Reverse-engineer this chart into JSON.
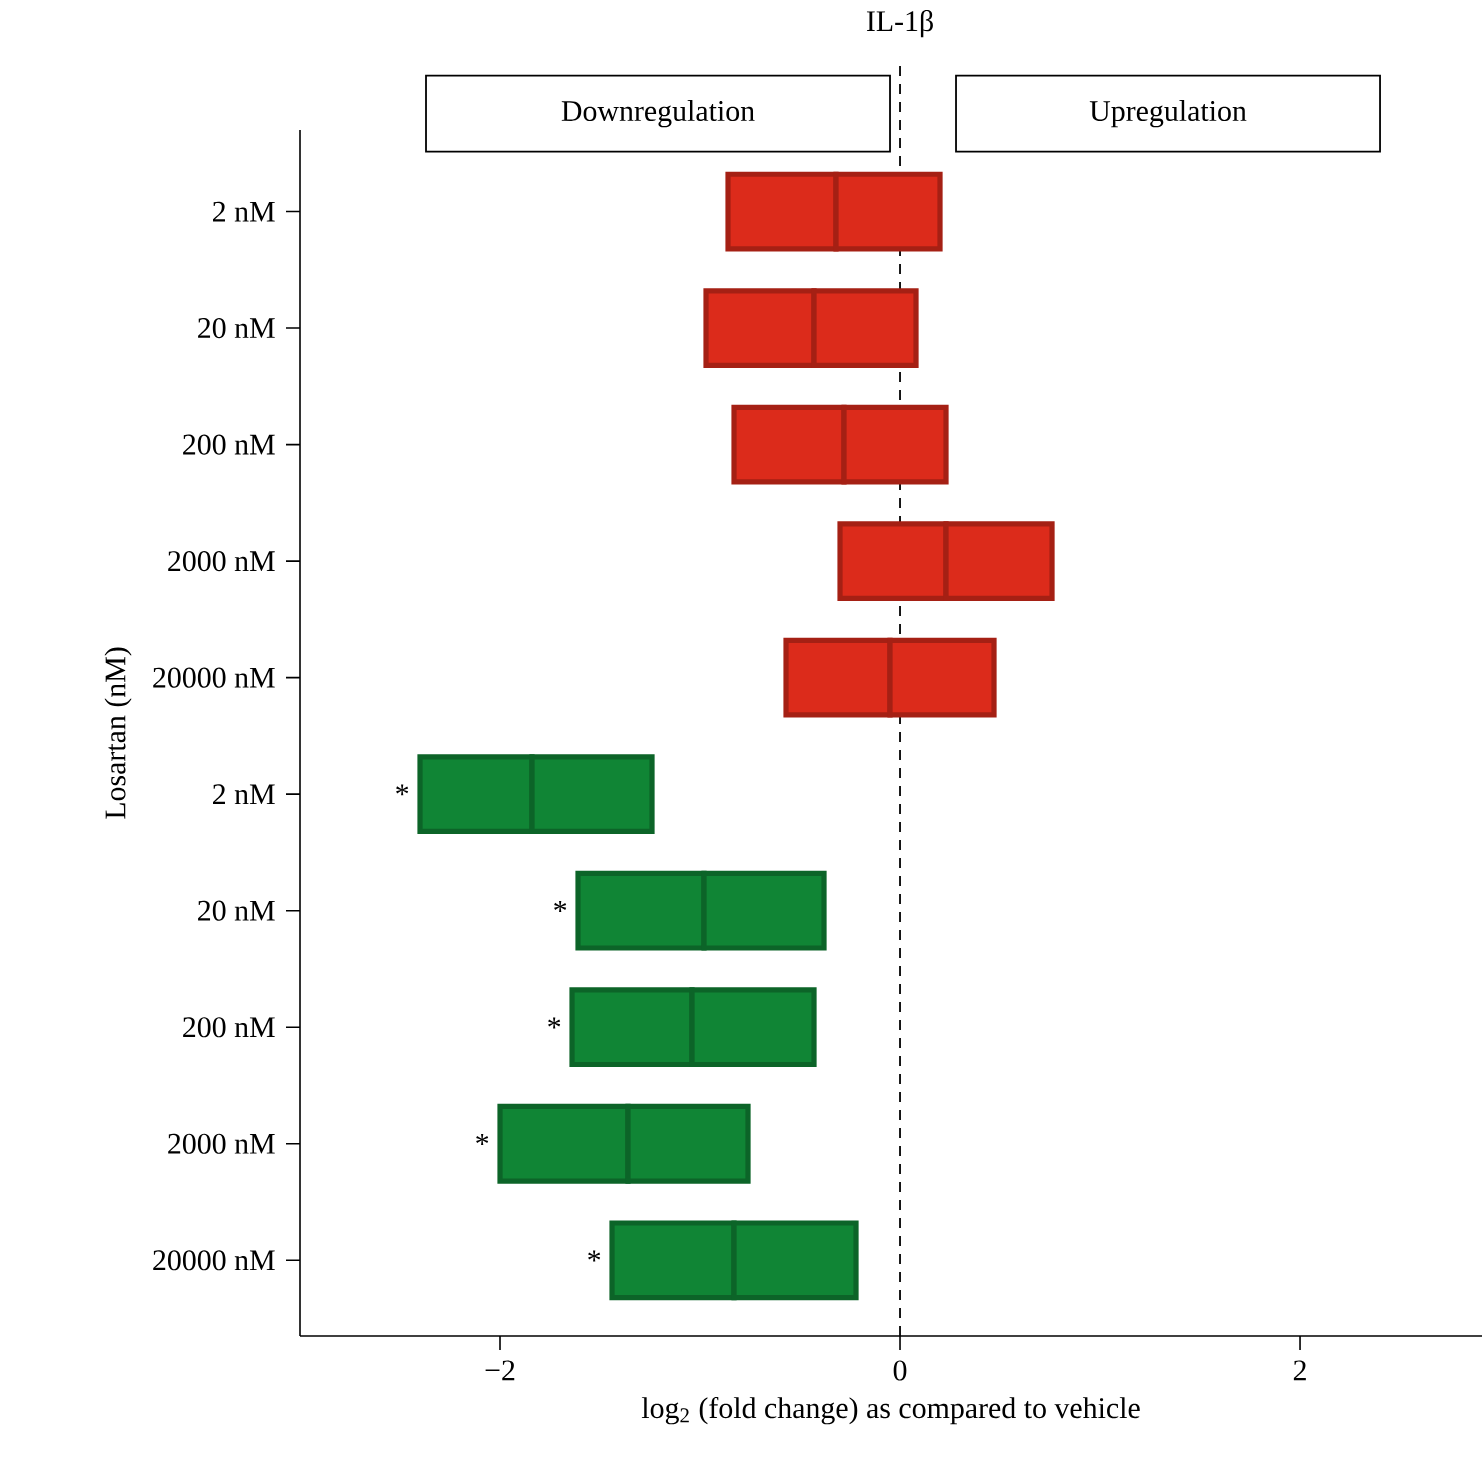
{
  "chart_data": {
    "type": "bar",
    "orientation": "horizontal",
    "title": "IL-1β",
    "xlabel": "log$_{2}$ (fold change) as compared to vehicle",
    "ylabel": "Losartan (nM)",
    "categories": [
      "2 nM",
      "20 nM",
      "200 nM",
      "2000 nM",
      "20000 nM",
      "2 nM",
      "20 nM",
      "200 nM",
      "2000 nM",
      "20000 nM"
    ],
    "series": [
      {
        "base": [
          -0.86,
          -0.97,
          -0.83,
          -0.3,
          -0.57,
          -2.4,
          -1.61,
          -1.64,
          -2.0,
          -1.44
        ],
        "values": [
          0.54,
          0.54,
          0.55,
          0.53,
          0.52,
          0.56,
          0.63,
          0.6,
          0.64,
          0.61
        ],
        "colors": [
          "#dc2b1b",
          "#dc2b1b",
          "#dc2b1b",
          "#dc2b1b",
          "#dc2b1b",
          "#108535",
          "#108535",
          "#108535",
          "#108535",
          "#108535"
        ],
        "value_labels": [
          null,
          null,
          null,
          null,
          null,
          "*",
          "*",
          "*",
          "*",
          "*"
        ]
      },
      {
        "base": [
          -0.32,
          -0.43,
          -0.28,
          0.23,
          -0.05,
          -1.84,
          -0.98,
          -1.04,
          -1.36,
          -0.83
        ],
        "values": [
          0.52,
          0.51,
          0.51,
          0.53,
          0.52,
          0.6,
          0.6,
          0.61,
          0.6,
          0.61
        ],
        "colors": [
          "#dc2b1b",
          "#dc2b1b",
          "#dc2b1b",
          "#dc2b1b",
          "#dc2b1b",
          "#108535",
          "#108535",
          "#108535",
          "#108535",
          "#108535"
        ]
      }
    ],
    "xlim": [
      -3,
      2.91
    ],
    "xticks": [
      {
        "value": -2,
        "label": "−2"
      },
      0,
      2
    ],
    "ref_lines": [
      {
        "axis": "x",
        "value": 0,
        "line_style": "dashed"
      }
    ],
    "annotations": [
      "Downregulation",
      "Upregulation"
    ]
  }
}
